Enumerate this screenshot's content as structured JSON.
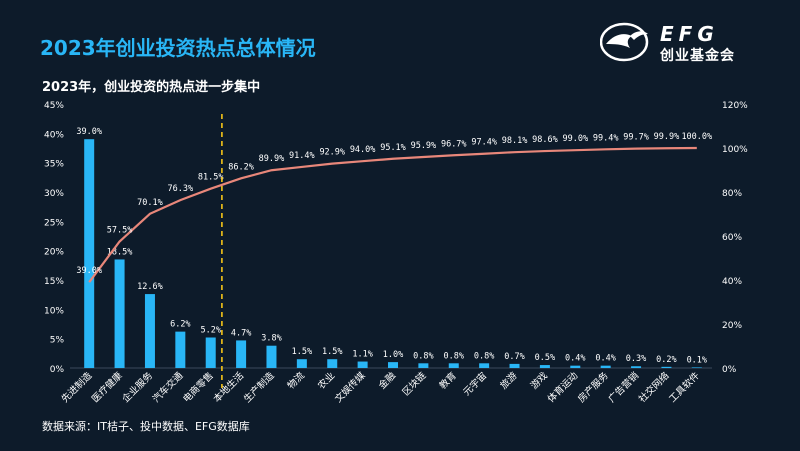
{
  "header": {
    "title": "2023年创业投资热点总体情况",
    "subtitle": "2023年，创业投资的热点进一步集中"
  },
  "logo": {
    "name": "EFG",
    "tagline": "创业基金会"
  },
  "footer": {
    "source": "数据来源：IT桔子、投中数据、EFG数据库"
  },
  "colors": {
    "background": "#0d1b2a",
    "title": "#29b6f6",
    "bar": "#29b6f6",
    "line": "#e8877a",
    "divider": "#f5c518",
    "text": "#ffffff"
  },
  "chart_data": {
    "type": "bar+line",
    "categories": [
      "先进制造",
      "医疗健康",
      "企业服务",
      "汽车交通",
      "电商零售",
      "本地生活",
      "生产制造",
      "物流",
      "农业",
      "文娱传媒",
      "金融",
      "区块链",
      "教育",
      "元宇宙",
      "旅游",
      "游戏",
      "体育运动",
      "房产服务",
      "广告营销",
      "社交网络",
      "工具软件"
    ],
    "series": [
      {
        "type": "bar",
        "axis": "left",
        "values": [
          39.0,
          18.5,
          12.6,
          6.2,
          5.2,
          4.7,
          3.8,
          1.5,
          1.5,
          1.1,
          1.0,
          0.8,
          0.8,
          0.8,
          0.7,
          0.5,
          0.4,
          0.4,
          0.3,
          0.2,
          0.1
        ],
        "labels": [
          "39.0%",
          "18.5%",
          "12.6%",
          "6.2%",
          "5.2%",
          "4.7%",
          "3.8%",
          "1.5%",
          "1.5%",
          "1.1%",
          "1.0%",
          "0.8%",
          "0.8%",
          "0.8%",
          "0.7%",
          "0.5%",
          "0.4%",
          "0.4%",
          "0.3%",
          "0.2%",
          "0.1%"
        ]
      },
      {
        "type": "line",
        "axis": "right",
        "values": [
          39.0,
          57.5,
          70.1,
          76.3,
          81.5,
          86.2,
          89.9,
          91.4,
          92.9,
          94.0,
          95.1,
          95.9,
          96.7,
          97.4,
          98.1,
          98.6,
          99.0,
          99.4,
          99.7,
          99.9,
          100.0
        ],
        "labels": [
          "39.0%",
          "57.5%",
          "70.1%",
          "76.3%",
          "81.5%",
          "86.2%",
          "89.9%",
          "91.4%",
          "92.9%",
          "94.0%",
          "95.1%",
          "95.9%",
          "96.7%",
          "97.4%",
          "98.1%",
          "98.6%",
          "99.0%",
          "99.4%",
          "99.7%",
          "99.9%",
          "100.0%"
        ]
      }
    ],
    "y_left": {
      "min": 0,
      "max": 45,
      "step": 5,
      "ticks": [
        "0%",
        "5%",
        "10%",
        "15%",
        "20%",
        "25%",
        "30%",
        "35%",
        "40%",
        "45%"
      ]
    },
    "y_right": {
      "min": 0,
      "max": 120,
      "step": 20,
      "ticks": [
        "0%",
        "20%",
        "40%",
        "60%",
        "80%",
        "100%",
        "120%"
      ]
    },
    "divider_after_category": 4,
    "grid": false,
    "legend": "none"
  }
}
